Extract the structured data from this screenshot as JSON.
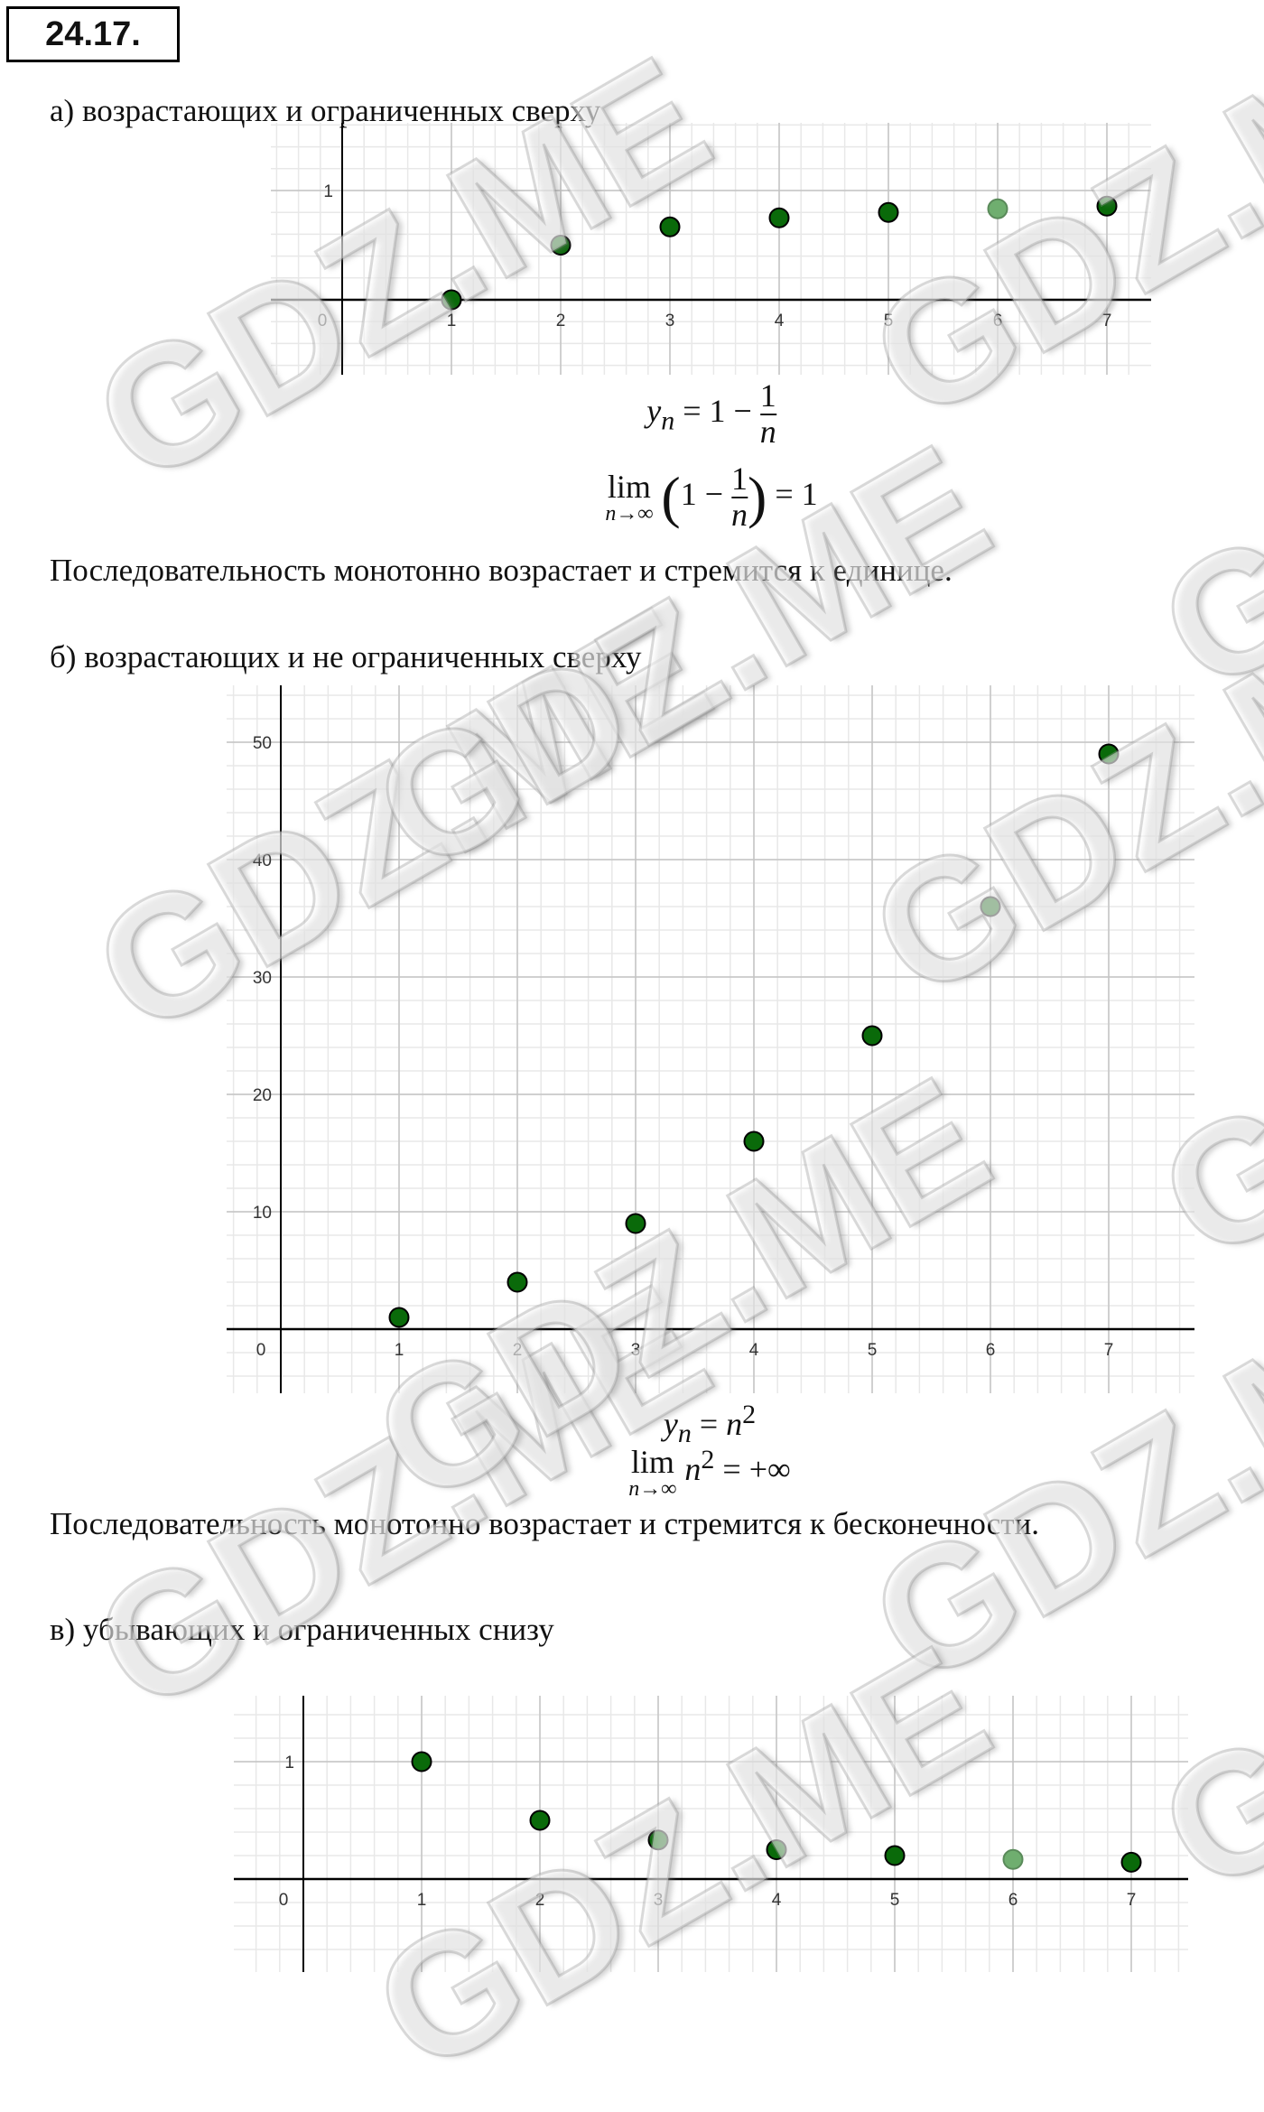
{
  "problem_number": "24.17.",
  "sections": [
    {
      "label": "а) возрастающих и ограниченных сверху",
      "formula_def": {
        "lhs": "y",
        "sub": "n",
        "eq": " = 1 − ",
        "num": "1",
        "den": "n"
      },
      "formula_lim": {
        "lim": "lim",
        "under": "n→∞",
        "inner_a": "1 − ",
        "num": "1",
        "den": "n",
        "rhs": " = 1"
      },
      "sentence": "Последовательность монотонно возрастает и стремится к единице."
    },
    {
      "label": "б) возрастающих и не ограниченных сверху",
      "formula_def": {
        "lhs": "y",
        "sub": "n",
        "eq": " = ",
        "base": "n",
        "exp": "2"
      },
      "formula_lim": {
        "lim": "lim",
        "under": "n→∞",
        "base": "n",
        "exp": "2",
        "rhs": " = +∞"
      },
      "sentence": "Последовательность монотонно возрастает и стремится к бесконечности."
    },
    {
      "label": "в) убывающих и ограниченных снизу"
    }
  ],
  "watermark": "GDZ.ME",
  "colors": {
    "point": "#0a6a0a",
    "point_highlight": "#6fae6f",
    "grid_major": "#c4c4c4",
    "grid_minor": "#e8e8e8",
    "axis": "#000000"
  },
  "chart_data": [
    {
      "type": "scatter",
      "x": [
        1,
        2,
        3,
        4,
        5,
        6,
        7
      ],
      "y": [
        0,
        0.5,
        0.667,
        0.75,
        0.8,
        0.833,
        0.857
      ],
      "xticks": [
        "0",
        "1",
        "2",
        "3",
        "4",
        "5",
        "6",
        "7"
      ],
      "yticks": [
        "1"
      ],
      "xlim": [
        -0.65,
        7.4
      ],
      "ylim": [
        -0.7,
        1.6
      ],
      "grid": true,
      "highlighted_point_x": 6
    },
    {
      "type": "scatter",
      "x": [
        1,
        2,
        3,
        4,
        5,
        6,
        7
      ],
      "y": [
        1,
        4,
        9,
        16,
        25,
        36,
        49
      ],
      "xticks": [
        "0",
        "1",
        "2",
        "3",
        "4",
        "5",
        "6",
        "7"
      ],
      "yticks": [
        "10",
        "20",
        "30",
        "40",
        "50"
      ],
      "xlim": [
        -0.45,
        7.7
      ],
      "ylim": [
        -5.5,
        55
      ],
      "grid": true
    },
    {
      "type": "scatter",
      "x": [
        1,
        2,
        3,
        4,
        5,
        6,
        7
      ],
      "y": [
        1,
        0.5,
        0.333,
        0.25,
        0.2,
        0.167,
        0.143
      ],
      "xticks": [
        "0",
        "1",
        "2",
        "3",
        "4",
        "5",
        "6",
        "7"
      ],
      "yticks": [
        "1"
      ],
      "xlim": [
        -0.6,
        7.5
      ],
      "ylim": [
        -0.8,
        1.6
      ],
      "grid": true,
      "highlighted_point_x": 6
    }
  ]
}
